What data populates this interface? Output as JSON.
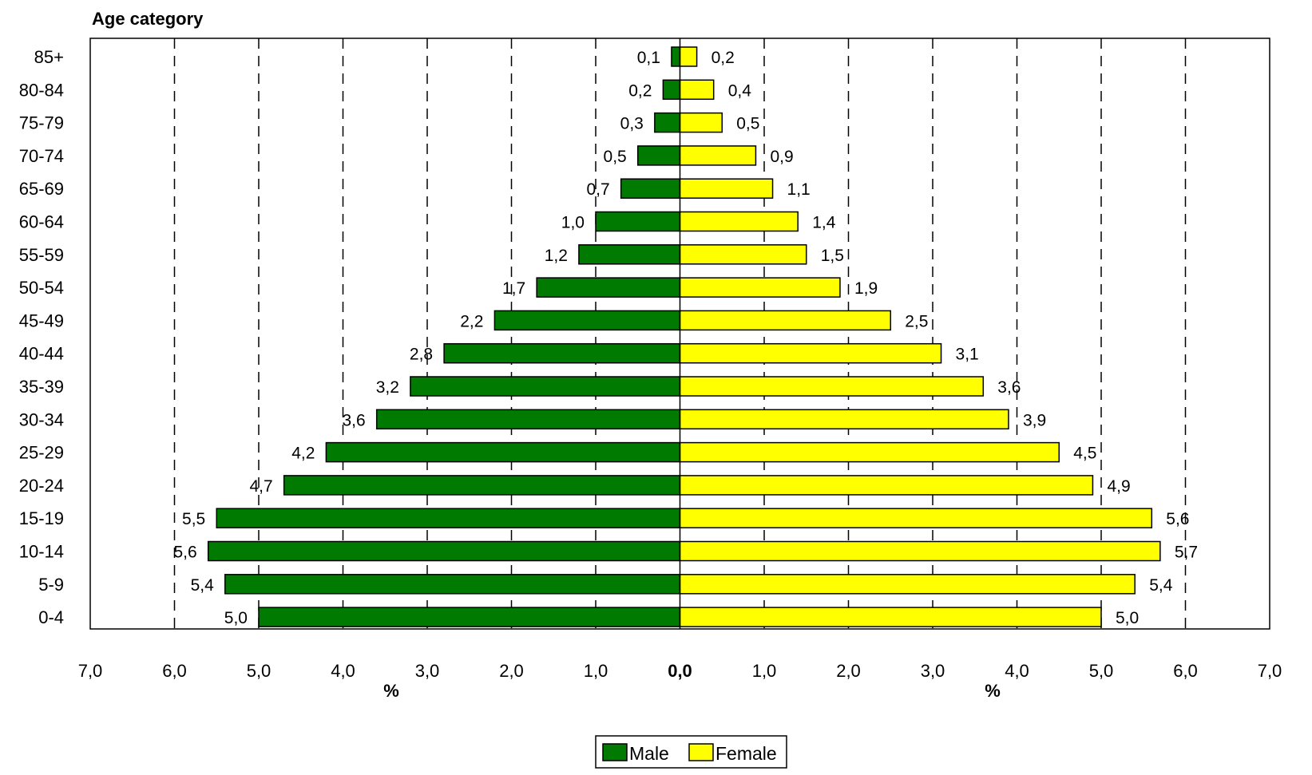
{
  "chart_data": {
    "type": "bar",
    "orientation": "horizontal",
    "subtype": "population-pyramid",
    "y_axis_title": "Age category",
    "categories": [
      "85+",
      "80-84",
      "75-79",
      "70-74",
      "65-69",
      "60-64",
      "55-59",
      "50-54",
      "45-49",
      "40-44",
      "35-39",
      "30-34",
      "25-29",
      "20-24",
      "15-19",
      "10-14",
      "5-9",
      "0-4"
    ],
    "series": [
      {
        "name": "Male",
        "side": "left",
        "color": "#007a00",
        "values": [
          0.1,
          0.2,
          0.3,
          0.5,
          0.7,
          1.0,
          1.2,
          1.7,
          2.2,
          2.8,
          3.2,
          3.6,
          4.2,
          4.7,
          5.5,
          5.6,
          5.4,
          5.0
        ],
        "value_labels": [
          "0,1",
          "0,2",
          "0,3",
          "0,5",
          "0,7",
          "1,0",
          "1,2",
          "1,7",
          "2,2",
          "2,8",
          "3,2",
          "3,6",
          "4,2",
          "4,7",
          "5,5",
          "5,6",
          "5,4",
          "5,0"
        ]
      },
      {
        "name": "Female",
        "side": "right",
        "color": "#ffff00",
        "values": [
          0.2,
          0.4,
          0.5,
          0.9,
          1.1,
          1.4,
          1.5,
          1.9,
          2.5,
          3.1,
          3.6,
          3.9,
          4.5,
          4.9,
          5.6,
          5.7,
          5.4,
          5.0
        ],
        "value_labels": [
          "0,2",
          "0,4",
          "0,5",
          "0,9",
          "1,1",
          "1,4",
          "1,5",
          "1,9",
          "2,5",
          "3,1",
          "3,6",
          "3,9",
          "4,5",
          "4,9",
          "5,6",
          "5,7",
          "5,4",
          "5,0"
        ]
      }
    ],
    "xlim": [
      -7,
      7
    ],
    "x_ticks": [
      -7,
      -6,
      -5,
      -4,
      -3,
      -2,
      -1,
      0,
      1,
      2,
      3,
      4,
      5,
      6,
      7
    ],
    "x_tick_labels": [
      "7,0",
      "6,0",
      "5,0",
      "4,0",
      "3,0",
      "2,0",
      "1,0",
      "0,0",
      "1,0",
      "2,0",
      "3,0",
      "4,0",
      "5,0",
      "6,0",
      "7,0"
    ],
    "xlabel_left": "%",
    "xlabel_right": "%",
    "grid": "vertical-dashed",
    "legend_position": "bottom-center",
    "bar_outline_color": "#000000"
  }
}
